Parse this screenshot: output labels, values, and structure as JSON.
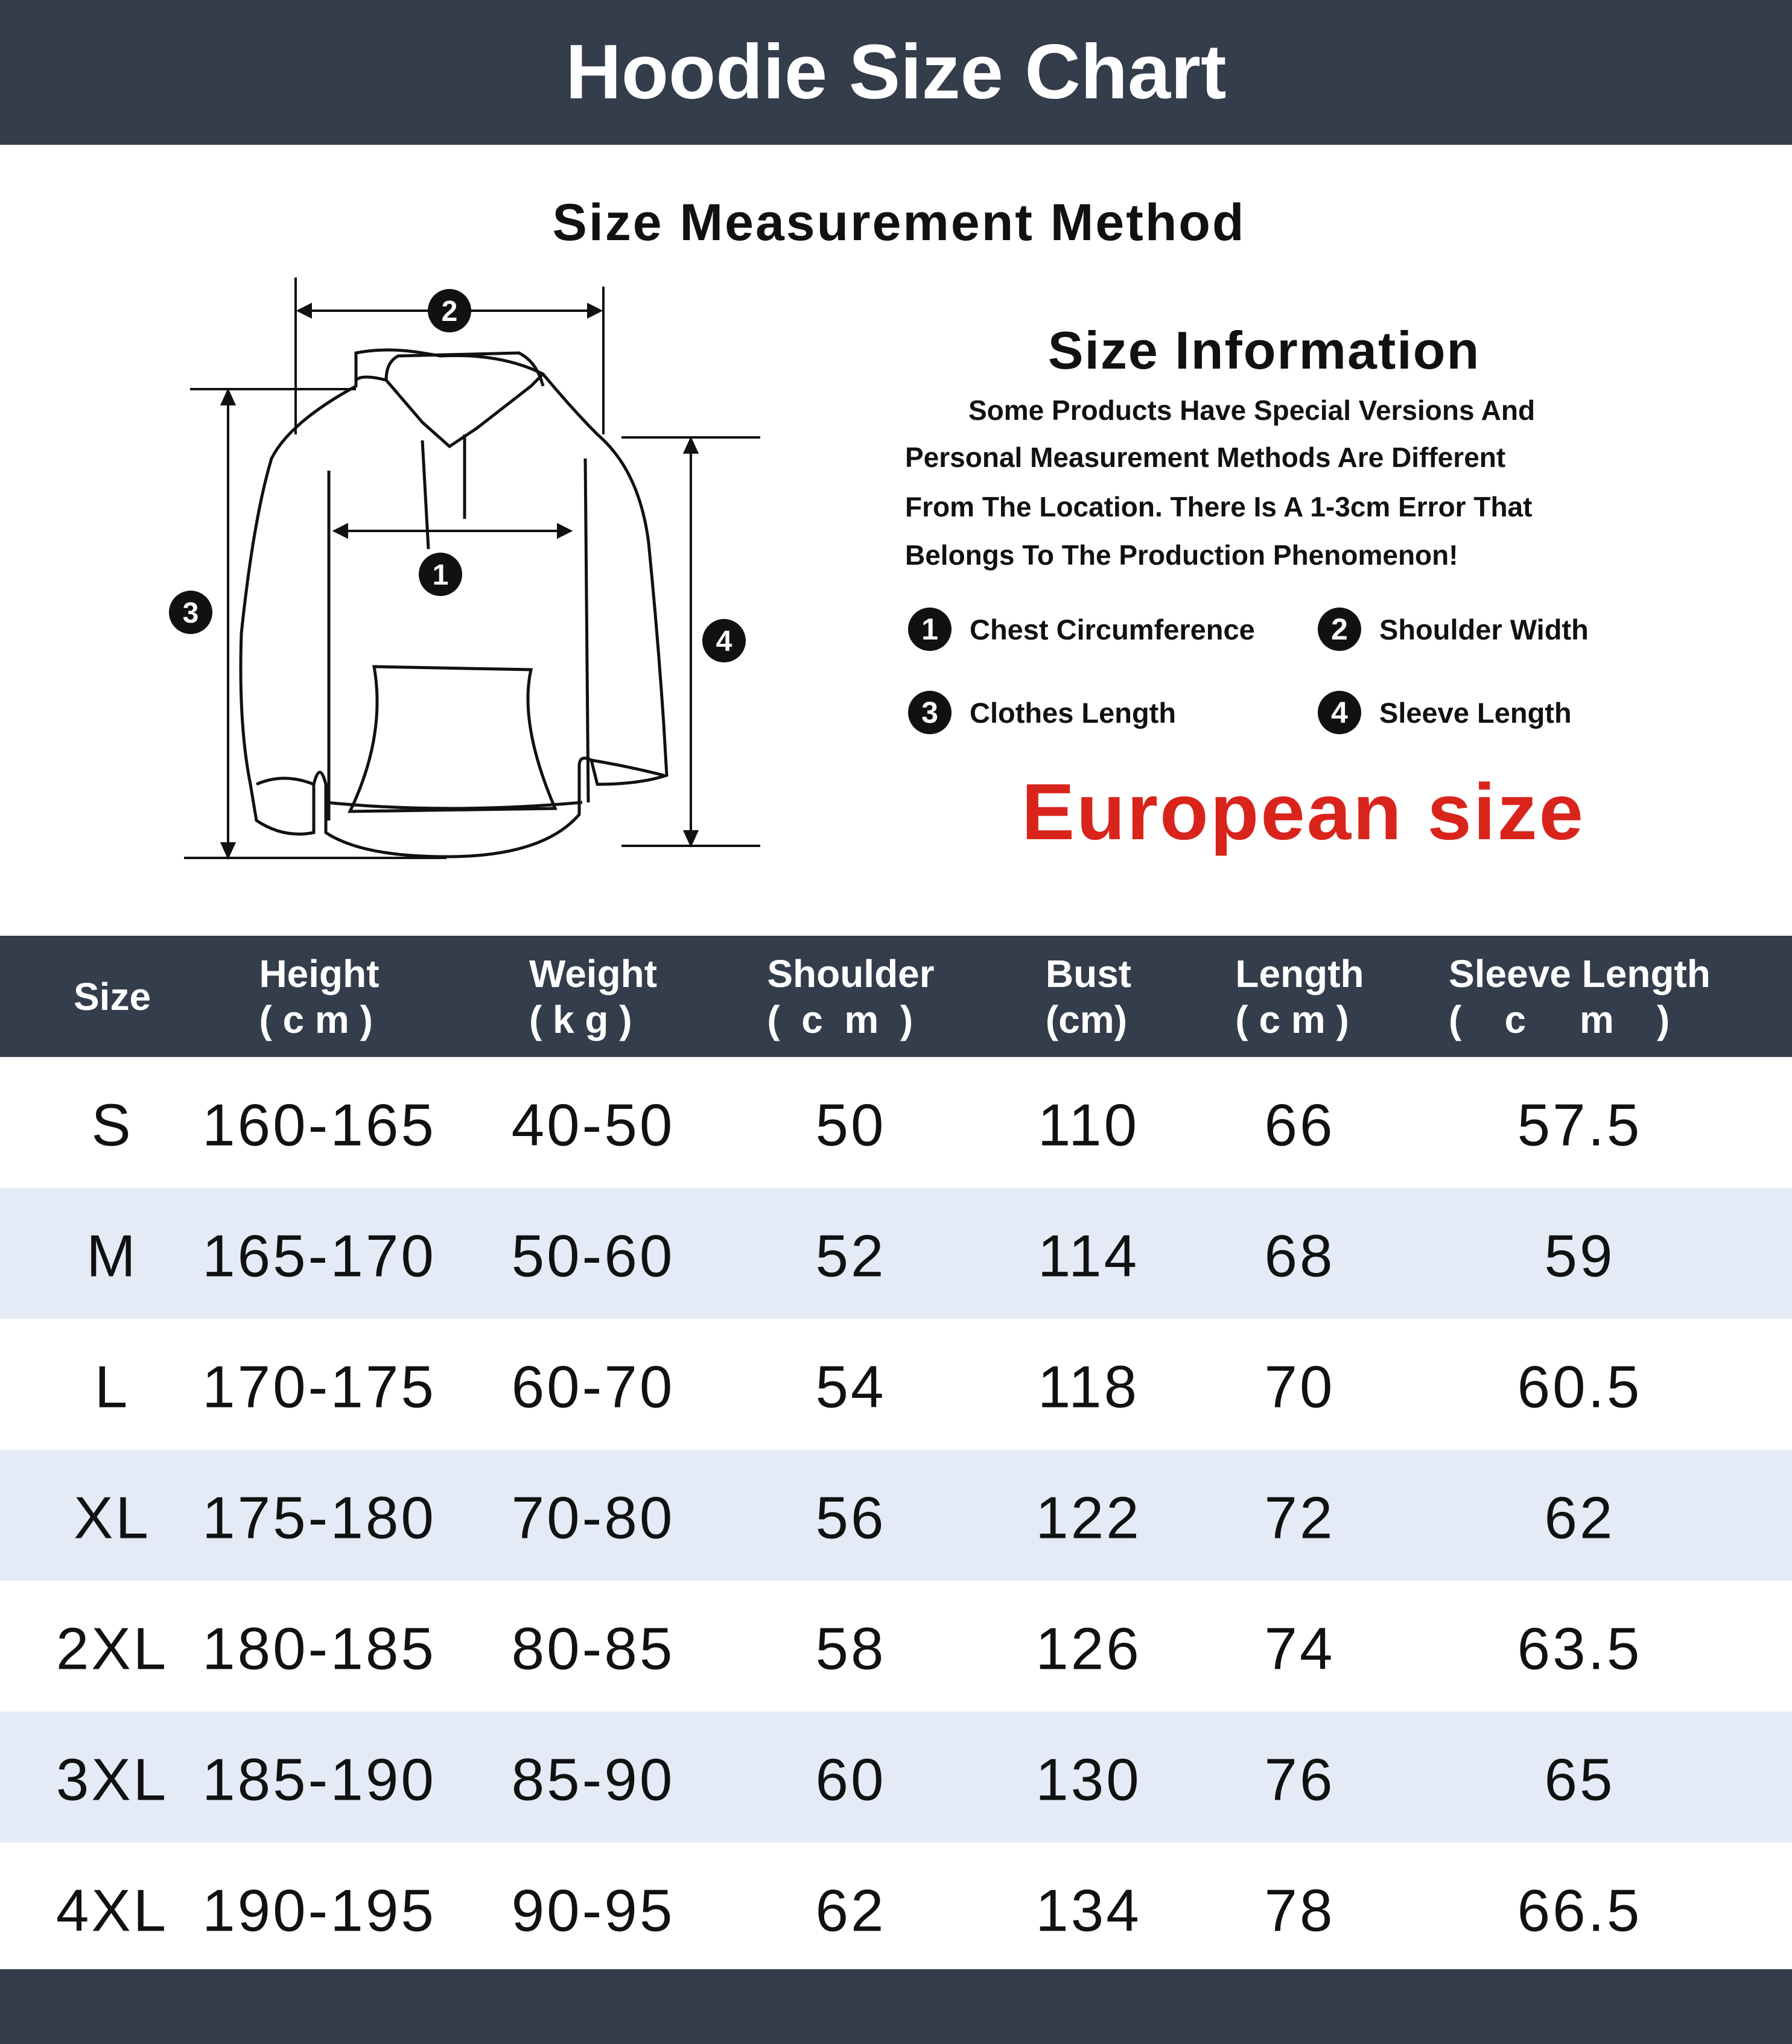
{
  "header": {
    "title": "Hoodie Size Chart"
  },
  "method": {
    "title": "Size Measurement Method",
    "markers": [
      "1",
      "2",
      "3",
      "4"
    ]
  },
  "info": {
    "title": "Size Information",
    "lines": [
      "Some Products Have Special Versions And",
      "Personal Measurement Methods Are Different",
      "From The Location. There Is A 1-3cm Error That",
      "Belongs To The Production Phenomenon!"
    ],
    "legend": [
      {
        "num": "1",
        "label": "Chest Circumference"
      },
      {
        "num": "2",
        "label": "Shoulder Width"
      },
      {
        "num": "3",
        "label": "Clothes Length"
      },
      {
        "num": "4",
        "label": "Sleeve Length"
      }
    ],
    "region": "European size"
  },
  "colors": {
    "header_bg": "#343d4b",
    "stripe": "#e4eaf6",
    "accent": "#d9241c"
  },
  "table": {
    "headers": [
      "Size",
      "Height\n( c m )",
      "Weight\n( k g )",
      "Shoulder\n(  c  m  )",
      "Bust\n(cm)",
      "Length\n( c m )",
      "Sleeve Length\n(    c     m    )"
    ],
    "rows": [
      [
        "S",
        "160-165",
        "40-50",
        "50",
        "110",
        "66",
        "57.5"
      ],
      [
        "M",
        "165-170",
        "50-60",
        "52",
        "114",
        "68",
        "59"
      ],
      [
        "L",
        "170-175",
        "60-70",
        "54",
        "118",
        "70",
        "60.5"
      ],
      [
        "XL",
        "175-180",
        "70-80",
        "56",
        "122",
        "72",
        "62"
      ],
      [
        "2XL",
        "180-185",
        "80-85",
        "58",
        "126",
        "74",
        "63.5"
      ],
      [
        "3XL",
        "185-190",
        "85-90",
        "60",
        "130",
        "76",
        "65"
      ],
      [
        "4XL",
        "190-195",
        "90-95",
        "62",
        "134",
        "78",
        "66.5"
      ]
    ]
  }
}
